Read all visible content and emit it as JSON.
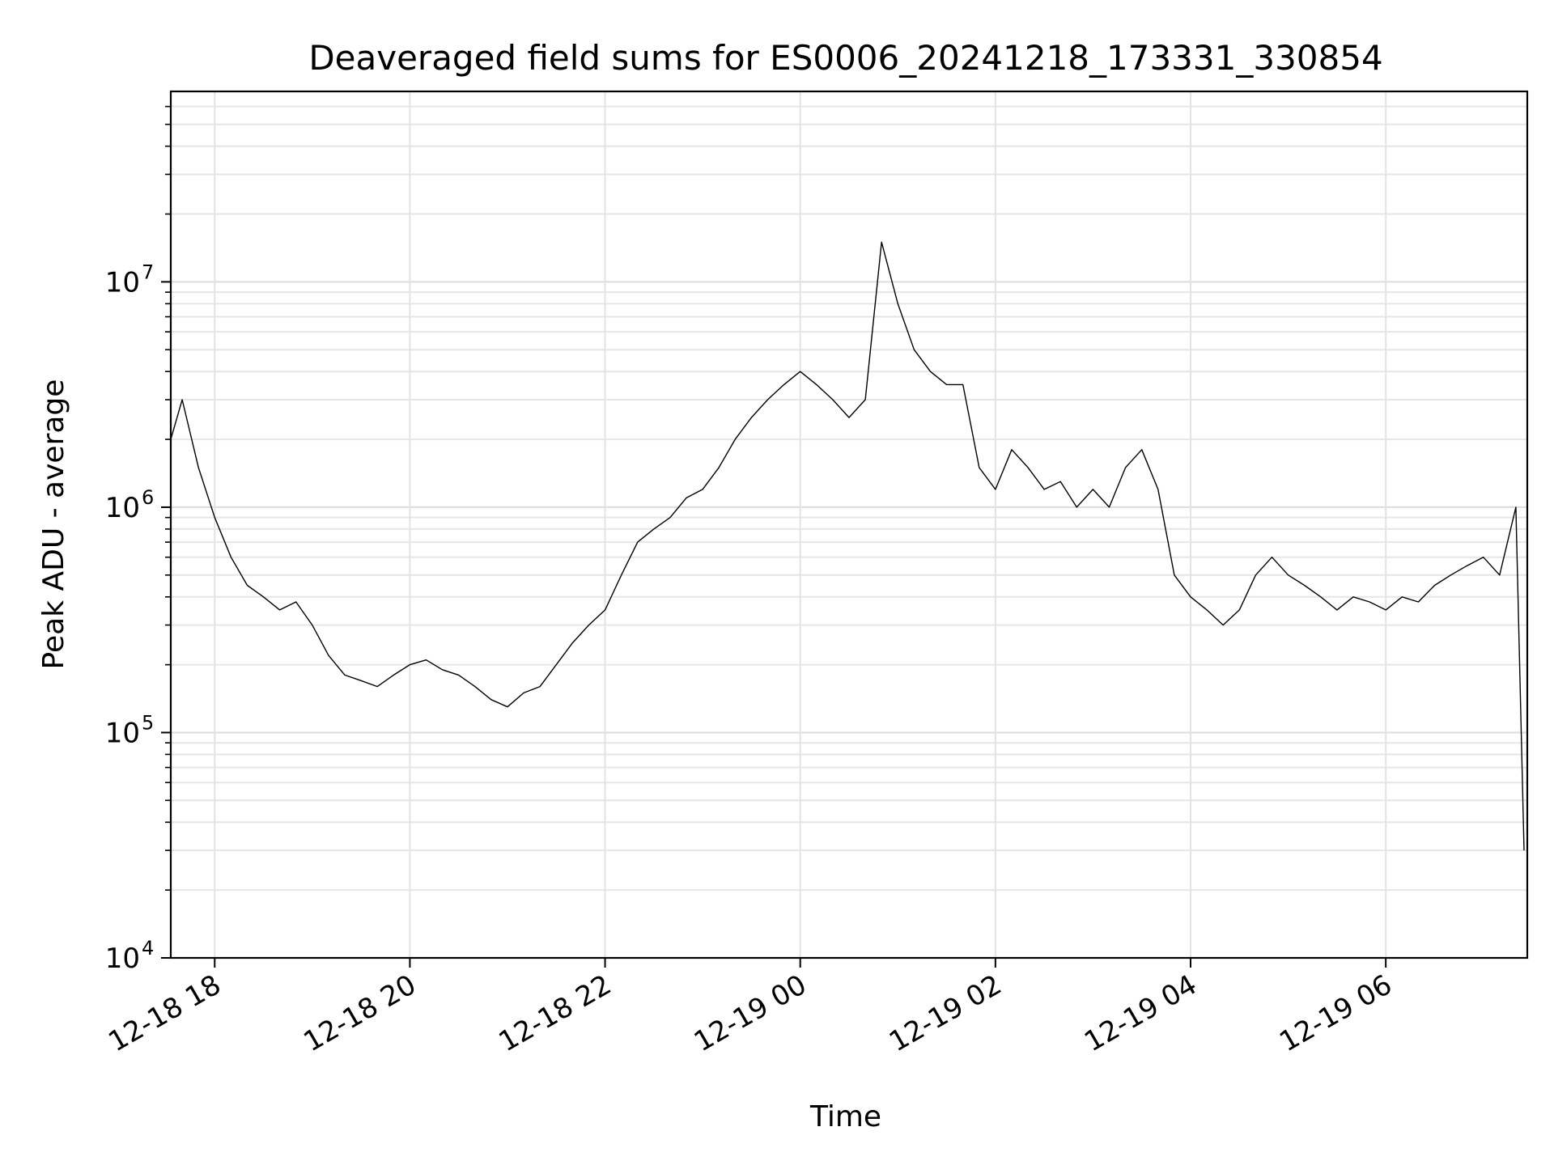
{
  "chart_data": {
    "type": "line",
    "title": "Deaveraged field sums for ES0006_20241218_173331_330854",
    "xlabel": "Time",
    "ylabel": "Peak ADU - average",
    "yscale": "log",
    "ylim": [
      10000,
      70000000
    ],
    "xlim": [
      "2024-12-18 17:33",
      "2024-12-19 07:27"
    ],
    "grid": "on (major and minor)",
    "x_ticks": [
      {
        "time": "2024-12-18 18:00",
        "label": "12-18 18"
      },
      {
        "time": "2024-12-18 20:00",
        "label": "12-18 20"
      },
      {
        "time": "2024-12-18 22:00",
        "label": "12-18 22"
      },
      {
        "time": "2024-12-19 00:00",
        "label": "12-19 00"
      },
      {
        "time": "2024-12-19 02:00",
        "label": "12-19 02"
      },
      {
        "time": "2024-12-19 04:00",
        "label": "12-19 04"
      },
      {
        "time": "2024-12-19 06:00",
        "label": "12-19 06"
      }
    ],
    "y_ticks": [
      {
        "value": 10000,
        "base": "10",
        "exp": "4"
      },
      {
        "value": 100000,
        "base": "10",
        "exp": "5"
      },
      {
        "value": 1000000,
        "base": "10",
        "exp": "6"
      },
      {
        "value": 10000000,
        "base": "10",
        "exp": "7"
      }
    ],
    "series": [
      {
        "color": "#000000",
        "note_time_format": "YYYY-MM-DD HH:MM",
        "points": [
          [
            "2024-12-18 17:33",
            2000000
          ],
          [
            "2024-12-18 17:40",
            3000000
          ],
          [
            "2024-12-18 17:50",
            1500000
          ],
          [
            "2024-12-18 18:00",
            900000
          ],
          [
            "2024-12-18 18:10",
            600000
          ],
          [
            "2024-12-18 18:20",
            450000
          ],
          [
            "2024-12-18 18:30",
            400000
          ],
          [
            "2024-12-18 18:40",
            350000
          ],
          [
            "2024-12-18 18:50",
            380000
          ],
          [
            "2024-12-18 19:00",
            300000
          ],
          [
            "2024-12-18 19:10",
            220000
          ],
          [
            "2024-12-18 19:20",
            180000
          ],
          [
            "2024-12-18 19:30",
            170000
          ],
          [
            "2024-12-18 19:40",
            160000
          ],
          [
            "2024-12-18 19:50",
            180000
          ],
          [
            "2024-12-18 20:00",
            200000
          ],
          [
            "2024-12-18 20:10",
            210000
          ],
          [
            "2024-12-18 20:20",
            190000
          ],
          [
            "2024-12-18 20:30",
            180000
          ],
          [
            "2024-12-18 20:40",
            160000
          ],
          [
            "2024-12-18 20:50",
            140000
          ],
          [
            "2024-12-18 21:00",
            130000
          ],
          [
            "2024-12-18 21:10",
            150000
          ],
          [
            "2024-12-18 21:20",
            160000
          ],
          [
            "2024-12-18 21:30",
            200000
          ],
          [
            "2024-12-18 21:40",
            250000
          ],
          [
            "2024-12-18 21:50",
            300000
          ],
          [
            "2024-12-18 22:00",
            350000
          ],
          [
            "2024-12-18 22:10",
            500000
          ],
          [
            "2024-12-18 22:20",
            700000
          ],
          [
            "2024-12-18 22:30",
            800000
          ],
          [
            "2024-12-18 22:40",
            900000
          ],
          [
            "2024-12-18 22:50",
            1100000
          ],
          [
            "2024-12-18 23:00",
            1200000
          ],
          [
            "2024-12-18 23:10",
            1500000
          ],
          [
            "2024-12-18 23:20",
            2000000
          ],
          [
            "2024-12-18 23:30",
            2500000
          ],
          [
            "2024-12-18 23:40",
            3000000
          ],
          [
            "2024-12-18 23:50",
            3500000
          ],
          [
            "2024-12-19 00:00",
            4000000
          ],
          [
            "2024-12-19 00:10",
            3500000
          ],
          [
            "2024-12-19 00:20",
            3000000
          ],
          [
            "2024-12-19 00:30",
            2500000
          ],
          [
            "2024-12-19 00:40",
            3000000
          ],
          [
            "2024-12-19 00:50",
            15000000
          ],
          [
            "2024-12-19 01:00",
            8000000
          ],
          [
            "2024-12-19 01:10",
            5000000
          ],
          [
            "2024-12-19 01:20",
            4000000
          ],
          [
            "2024-12-19 01:30",
            3500000
          ],
          [
            "2024-12-19 01:40",
            3500000
          ],
          [
            "2024-12-19 01:50",
            1500000
          ],
          [
            "2024-12-19 02:00",
            1200000
          ],
          [
            "2024-12-19 02:10",
            1800000
          ],
          [
            "2024-12-19 02:20",
            1500000
          ],
          [
            "2024-12-19 02:30",
            1200000
          ],
          [
            "2024-12-19 02:40",
            1300000
          ],
          [
            "2024-12-19 02:50",
            1000000
          ],
          [
            "2024-12-19 03:00",
            1200000
          ],
          [
            "2024-12-19 03:10",
            1000000
          ],
          [
            "2024-12-19 03:20",
            1500000
          ],
          [
            "2024-12-19 03:30",
            1800000
          ],
          [
            "2024-12-19 03:40",
            1200000
          ],
          [
            "2024-12-19 03:50",
            500000
          ],
          [
            "2024-12-19 04:00",
            400000
          ],
          [
            "2024-12-19 04:10",
            350000
          ],
          [
            "2024-12-19 04:20",
            300000
          ],
          [
            "2024-12-19 04:30",
            350000
          ],
          [
            "2024-12-19 04:40",
            500000
          ],
          [
            "2024-12-19 04:50",
            600000
          ],
          [
            "2024-12-19 05:00",
            500000
          ],
          [
            "2024-12-19 05:10",
            450000
          ],
          [
            "2024-12-19 05:20",
            400000
          ],
          [
            "2024-12-19 05:30",
            350000
          ],
          [
            "2024-12-19 05:40",
            400000
          ],
          [
            "2024-12-19 05:50",
            380000
          ],
          [
            "2024-12-19 06:00",
            350000
          ],
          [
            "2024-12-19 06:10",
            400000
          ],
          [
            "2024-12-19 06:20",
            380000
          ],
          [
            "2024-12-19 06:30",
            450000
          ],
          [
            "2024-12-19 06:40",
            500000
          ],
          [
            "2024-12-19 06:50",
            550000
          ],
          [
            "2024-12-19 07:00",
            600000
          ],
          [
            "2024-12-19 07:10",
            500000
          ],
          [
            "2024-12-19 07:20",
            1000000
          ],
          [
            "2024-12-19 07:25",
            30000
          ]
        ]
      }
    ]
  }
}
